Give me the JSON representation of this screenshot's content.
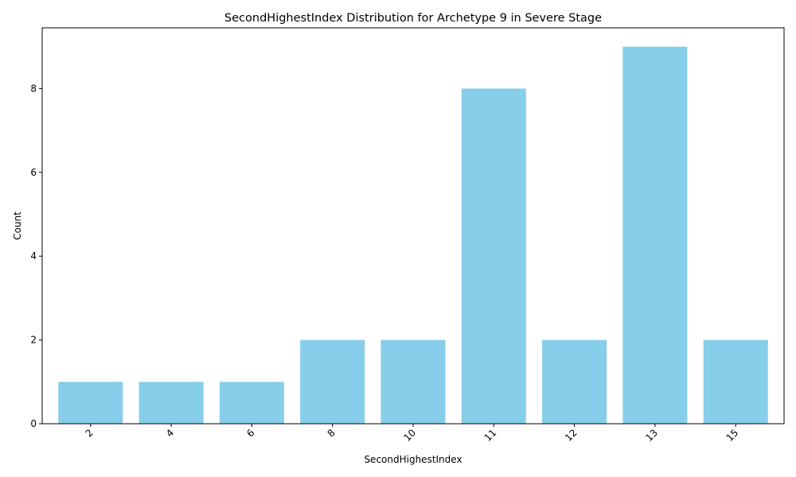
{
  "chart_data": {
    "type": "bar",
    "title": "SecondHighestIndex Distribution for Archetype 9 in Severe Stage",
    "xlabel": "SecondHighestIndex",
    "ylabel": "Count",
    "categories": [
      "2",
      "4",
      "6",
      "8",
      "10",
      "11",
      "12",
      "13",
      "15"
    ],
    "values": [
      1,
      1,
      1,
      2,
      2,
      8,
      2,
      9,
      2
    ],
    "ylim": [
      0,
      9.45
    ],
    "yticks": [
      0,
      2,
      4,
      6,
      8
    ],
    "bar_color": "#87CEEB",
    "grid": false,
    "legend": "none"
  }
}
